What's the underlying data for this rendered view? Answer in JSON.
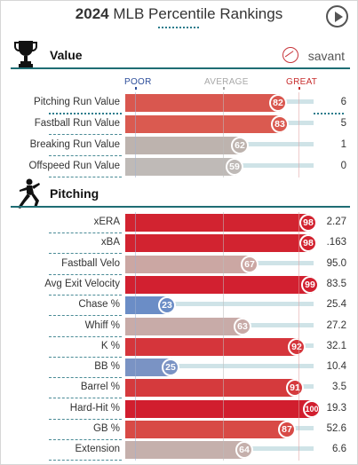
{
  "header": {
    "year": "2024",
    "title": "MLB Percentile Rankings",
    "play_icon": "play-icon"
  },
  "value_section": {
    "title": "Value",
    "icon": "trophy-icon",
    "brand": "savant",
    "brand_icon": "savant-logo-icon",
    "scale": {
      "poor": "POOR",
      "average": "AVERAGE",
      "great": "GREAT"
    },
    "rows": [
      {
        "label": "Pitching Run Value",
        "percentile": 82,
        "value": "6",
        "color": "#d9574f"
      },
      {
        "label": "Fastball Run Value",
        "percentile": 83,
        "value": "5",
        "color": "#da5a50"
      },
      {
        "label": "Breaking Run Value",
        "percentile": 62,
        "value": "1",
        "color": "#bdb3ae"
      },
      {
        "label": "Offspeed Run Value",
        "percentile": 59,
        "value": "0",
        "color": "#bfbab7"
      }
    ]
  },
  "pitching_section": {
    "title": "Pitching",
    "icon": "pitcher-icon",
    "rows": [
      {
        "label": "xERA",
        "percentile": 98,
        "value": "2.27",
        "color": "#d22330"
      },
      {
        "label": "xBA",
        "percentile": 98,
        "value": ".163",
        "color": "#d22330"
      },
      {
        "label": "Fastball Velo",
        "percentile": 67,
        "value": "95.0",
        "color": "#cba7a3"
      },
      {
        "label": "Avg Exit Velocity",
        "percentile": 99,
        "value": "83.5",
        "color": "#d22030"
      },
      {
        "label": "Chase %",
        "percentile": 23,
        "value": "25.4",
        "color": "#6b8dc6"
      },
      {
        "label": "Whiff %",
        "percentile": 63,
        "value": "27.2",
        "color": "#c8aba8"
      },
      {
        "label": "K %",
        "percentile": 92,
        "value": "32.1",
        "color": "#d5353b"
      },
      {
        "label": "BB %",
        "percentile": 25,
        "value": "10.4",
        "color": "#7a93c4"
      },
      {
        "label": "Barrel %",
        "percentile": 91,
        "value": "3.5",
        "color": "#d53a3d"
      },
      {
        "label": "Hard-Hit %",
        "percentile": 100,
        "value": "19.3",
        "color": "#d11e2e"
      },
      {
        "label": "GB %",
        "percentile": 87,
        "value": "52.6",
        "color": "#d84a46"
      },
      {
        "label": "Extension",
        "percentile": 64,
        "value": "6.6",
        "color": "#c5b0ac"
      }
    ]
  }
}
